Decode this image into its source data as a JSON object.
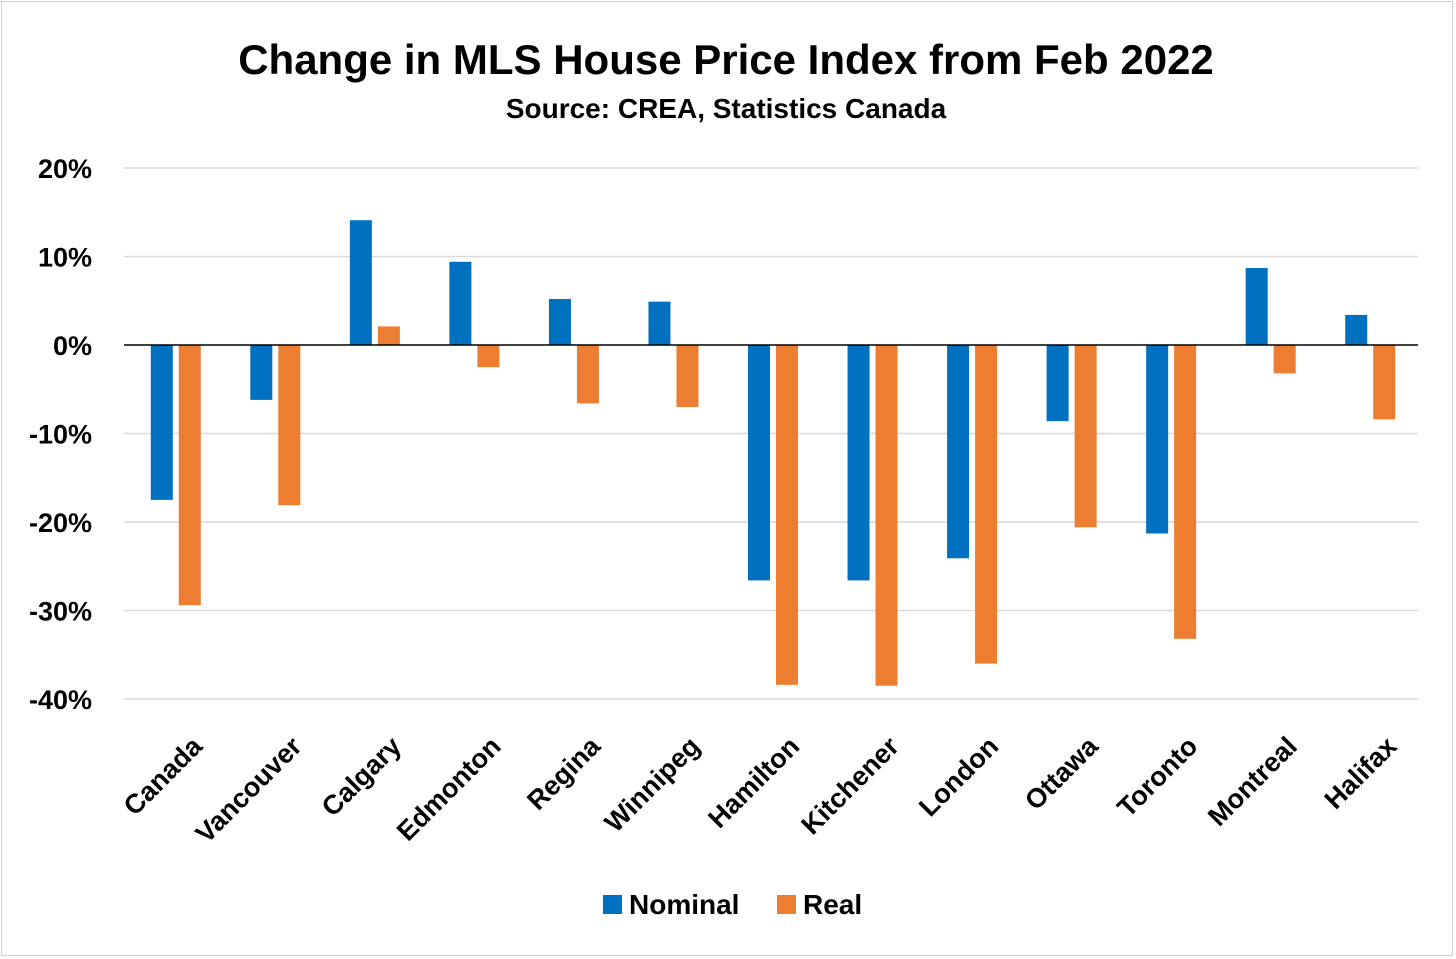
{
  "chart_data": {
    "type": "bar",
    "title": "Change in MLS House Price Index from Feb 2022",
    "subtitle": "Source: CREA, Statistics Canada",
    "xlabel": "",
    "ylabel": "",
    "ylim": [
      -40,
      20
    ],
    "yticks": [
      20,
      10,
      0,
      -10,
      -20,
      -30,
      -40
    ],
    "ytick_labels": [
      "20%",
      "10%",
      "0%",
      "-10%",
      "-20%",
      "-30%",
      "-40%"
    ],
    "grid": true,
    "legend_position": "bottom",
    "categories": [
      "Canada",
      "Vancouver",
      "Calgary",
      "Edmonton",
      "Regina",
      "Winnipeg",
      "Hamilton",
      "Kitchener",
      "London",
      "Ottawa",
      "Toronto",
      "Montreal",
      "Halifax"
    ],
    "series": [
      {
        "name": "Nominal",
        "color": "#0070C0",
        "values": [
          -17.5,
          -6.2,
          14.1,
          9.4,
          5.2,
          4.9,
          -26.6,
          -26.6,
          -24.1,
          -8.6,
          -21.3,
          8.7,
          3.4
        ]
      },
      {
        "name": "Real",
        "color": "#ED7D31",
        "values": [
          -29.4,
          -18.1,
          2.1,
          -2.5,
          -6.6,
          -7.0,
          -38.4,
          -38.5,
          -36.0,
          -20.6,
          -33.2,
          -3.2,
          -8.4
        ]
      }
    ]
  }
}
